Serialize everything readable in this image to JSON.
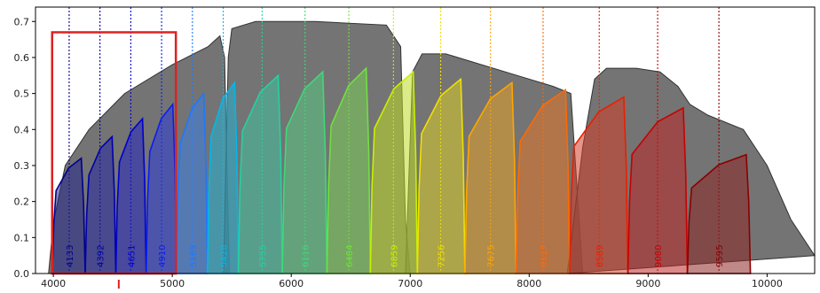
{
  "chart_data": {
    "type": "area",
    "title": "",
    "xlabel": "",
    "ylabel": "",
    "xlim": [
      3850,
      10400
    ],
    "ylim": [
      0,
      0.74
    ],
    "x_ticks": [
      {
        "value": 4000,
        "label": "4000"
      },
      {
        "value": 5000,
        "label": "5000"
      },
      {
        "value": 6000,
        "label": "6000"
      },
      {
        "value": 7000,
        "label": "7000"
      },
      {
        "value": 8000,
        "label": "8000"
      },
      {
        "value": 9000,
        "label": "9000"
      },
      {
        "value": 10000,
        "label": "10000"
      }
    ],
    "y_ticks": [
      {
        "value": 0.0,
        "label": "0.0"
      },
      {
        "value": 0.1,
        "label": "0.1"
      },
      {
        "value": 0.2,
        "label": "0.2"
      },
      {
        "value": 0.3,
        "label": "0.3"
      },
      {
        "value": 0.4,
        "label": "0.4"
      },
      {
        "value": 0.5,
        "label": "0.5"
      },
      {
        "value": 0.6,
        "label": "0.6"
      },
      {
        "value": 0.7,
        "label": "0.7"
      }
    ],
    "highlight_box": {
      "x0": 3990,
      "x1": 5030,
      "y0": 0.0,
      "y1": 0.67,
      "color": "#dd2222"
    },
    "axis_marker": {
      "x": 4550,
      "color": "#dd2222"
    },
    "broad_bands": [
      {
        "x": [
          3960,
          4000,
          4100,
          4300,
          4600,
          5000,
          5300,
          5400,
          5440,
          5480
        ],
        "y": [
          0.0,
          0.14,
          0.3,
          0.4,
          0.5,
          0.58,
          0.63,
          0.66,
          0.6,
          0.0
        ],
        "color": "#555555"
      },
      {
        "x": [
          5430,
          5470,
          5500,
          5700,
          6200,
          6800,
          6920,
          6960,
          7000
        ],
        "y": [
          0.0,
          0.6,
          0.68,
          0.7,
          0.7,
          0.69,
          0.63,
          0.15,
          0.0
        ],
        "color": "#555555"
      },
      {
        "x": [
          6960,
          7020,
          7100,
          7300,
          7600,
          7900,
          8200,
          8350,
          8400,
          8450
        ],
        "y": [
          0.0,
          0.56,
          0.61,
          0.61,
          0.58,
          0.55,
          0.52,
          0.5,
          0.25,
          0.0
        ],
        "color": "#555555"
      },
      {
        "x": [
          8320,
          8450,
          8550,
          8650,
          8900,
          9100,
          9250,
          9350,
          9500,
          9800,
          10000,
          10200,
          10400
        ],
        "y": [
          0.0,
          0.35,
          0.54,
          0.57,
          0.57,
          0.56,
          0.52,
          0.47,
          0.44,
          0.4,
          0.3,
          0.15,
          0.05
        ],
        "color": "#555555"
      }
    ],
    "filters": [
      {
        "center": 4133,
        "label": "4133",
        "x0": 3990,
        "x1": 4268,
        "peak": 0.32,
        "color": "#00008b"
      },
      {
        "center": 4392,
        "label": "4392",
        "x0": 4268,
        "x1": 4525,
        "peak": 0.38,
        "color": "#0000a8"
      },
      {
        "center": 4651,
        "label": "4651",
        "x0": 4525,
        "x1": 4780,
        "peak": 0.43,
        "color": "#0000cd"
      },
      {
        "center": 4910,
        "label": "4910",
        "x0": 4780,
        "x1": 5035,
        "peak": 0.47,
        "color": "#0a1eee"
      },
      {
        "center": 5169,
        "label": "5169",
        "x0": 5035,
        "x1": 5295,
        "peak": 0.5,
        "color": "#1e78ff"
      },
      {
        "center": 5428,
        "label": "5428",
        "x0": 5295,
        "x1": 5555,
        "peak": 0.53,
        "color": "#00b8e8"
      },
      {
        "center": 5755,
        "label": "5755",
        "x0": 5555,
        "x1": 5925,
        "peak": 0.55,
        "color": "#26d0a0"
      },
      {
        "center": 6116,
        "label": "6116",
        "x0": 5925,
        "x1": 6300,
        "peak": 0.56,
        "color": "#40d878"
      },
      {
        "center": 6484,
        "label": "6484",
        "x0": 6300,
        "x1": 6665,
        "peak": 0.57,
        "color": "#70e040"
      },
      {
        "center": 6859,
        "label": "6859",
        "x0": 6665,
        "x1": 7060,
        "peak": 0.56,
        "color": "#c8f000"
      },
      {
        "center": 7256,
        "label": "7256",
        "x0": 7060,
        "x1": 7460,
        "peak": 0.54,
        "color": "#f0e000"
      },
      {
        "center": 7675,
        "label": "7675",
        "x0": 7460,
        "x1": 7890,
        "peak": 0.53,
        "color": "#ffa500"
      },
      {
        "center": 8117,
        "label": "8117",
        "x0": 7890,
        "x1": 8340,
        "peak": 0.51,
        "color": "#ff6a00"
      },
      {
        "center": 8589,
        "label": "8589",
        "x0": 8340,
        "x1": 8830,
        "peak": 0.49,
        "color": "#e82000"
      },
      {
        "center": 9080,
        "label": "9080",
        "x0": 8830,
        "x1": 9330,
        "peak": 0.46,
        "color": "#c80000"
      },
      {
        "center": 9595,
        "label": "9595",
        "x0": 9330,
        "x1": 9860,
        "peak": 0.33,
        "color": "#8b0000"
      }
    ]
  }
}
